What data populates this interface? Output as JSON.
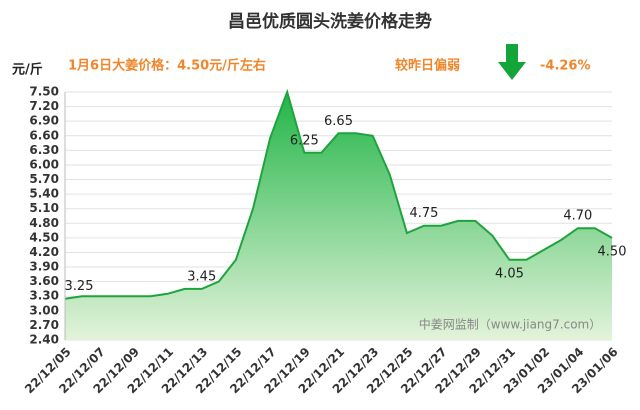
{
  "chart_data": {
    "type": "area",
    "title": "昌邑优质圆头洗姜价格走势",
    "y_label": "元/斤",
    "annotations": [
      "1月6日大姜价格：4.50元/斤左右",
      "较昨日偏弱",
      "-4.26%"
    ],
    "watermark": "中姜网监制（www.jiang7.com）",
    "categories": [
      "22/12/05",
      null,
      "22/12/07",
      null,
      "22/12/09",
      null,
      "22/12/11",
      null,
      "22/12/13",
      null,
      "22/12/15",
      null,
      "22/12/17",
      null,
      "22/12/19",
      null,
      "22/12/21",
      null,
      "22/12/23",
      null,
      "22/12/25",
      null,
      "22/12/27",
      null,
      "22/12/29",
      null,
      "22/12/31",
      null,
      "23/01/02",
      null,
      "23/01/04",
      null,
      "23/01/06"
    ],
    "series": [
      {
        "name": "价格",
        "color": "#1fa33f",
        "values": [
          3.25,
          3.3,
          3.3,
          3.3,
          3.3,
          3.3,
          3.35,
          3.45,
          3.45,
          3.6,
          4.05,
          5.1,
          6.55,
          7.5,
          6.25,
          6.25,
          6.65,
          6.65,
          6.6,
          5.8,
          4.6,
          4.75,
          4.75,
          4.85,
          4.85,
          4.55,
          4.05,
          4.05,
          4.25,
          4.45,
          4.7,
          4.7,
          4.5
        ],
        "value_labels": [
          "3.25",
          null,
          null,
          null,
          null,
          null,
          null,
          null,
          "3.45",
          null,
          null,
          null,
          null,
          null,
          "6.25",
          null,
          "6.65",
          null,
          null,
          null,
          null,
          "4.75",
          null,
          null,
          null,
          null,
          "4.05",
          null,
          null,
          null,
          "4.70",
          null,
          "4.50"
        ]
      }
    ],
    "ylim": [
      2.4,
      7.5
    ],
    "yticks": [
      {
        "value": 2.4,
        "label": "2.40"
      },
      {
        "value": 2.7,
        "label": "2.70"
      },
      {
        "value": 3.0,
        "label": "3.00"
      },
      {
        "value": 3.3,
        "label": "3.30"
      },
      {
        "value": 3.6,
        "label": "3.60"
      },
      {
        "value": 3.9,
        "label": "3.90"
      },
      {
        "value": 4.2,
        "label": "4.20"
      },
      {
        "value": 4.5,
        "label": "4.50"
      },
      {
        "value": 4.8,
        "label": "4.80"
      },
      {
        "value": 5.1,
        "label": "5.10"
      },
      {
        "value": 5.4,
        "label": "5.40"
      },
      {
        "value": 5.7,
        "label": "5.70"
      },
      {
        "value": 6.0,
        "label": "6.00"
      },
      {
        "value": 6.3,
        "label": "6.30"
      },
      {
        "value": 6.6,
        "label": "6.60"
      },
      {
        "value": 6.9,
        "label": "6.90"
      },
      {
        "value": 7.2,
        "label": "7.20"
      },
      {
        "value": 7.5,
        "label": "7.50"
      }
    ],
    "grid": true
  }
}
